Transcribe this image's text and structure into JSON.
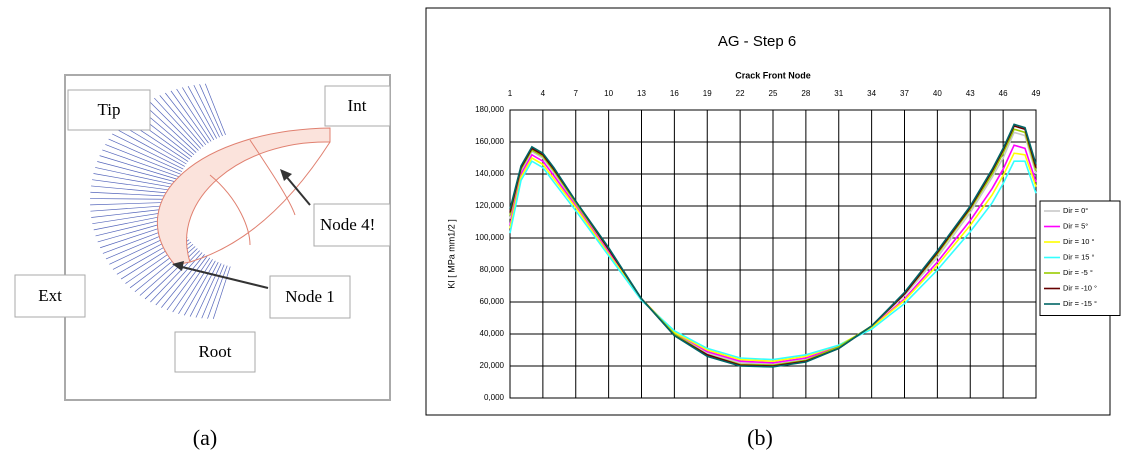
{
  "panel_a": {
    "labels": [
      "Tip",
      "Int",
      "Node 4!",
      "Ext",
      "Node 1",
      "Root"
    ],
    "caption": "(a)"
  },
  "panel_b": {
    "caption": "(b)"
  },
  "chart_data": {
    "type": "line",
    "title": "AG - Step 6",
    "x_label": "Crack Front Node",
    "y_label": "KI [ MPa mm1/2 ]",
    "x": [
      1,
      2,
      3,
      4,
      5,
      7,
      10,
      13,
      16,
      19,
      22,
      25,
      28,
      31,
      34,
      37,
      40,
      43,
      45,
      46,
      47,
      48,
      49
    ],
    "xlim": [
      1,
      49
    ],
    "xticks": [
      1,
      4,
      7,
      10,
      13,
      16,
      19,
      22,
      25,
      28,
      31,
      34,
      37,
      40,
      43,
      46,
      49
    ],
    "ylim": [
      0,
      180000
    ],
    "yticks": [
      {
        "value": 0,
        "label": "0,000"
      },
      {
        "value": 20000,
        "label": "20,000"
      },
      {
        "value": 40000,
        "label": "40,000"
      },
      {
        "value": 60000,
        "label": "60,000"
      },
      {
        "value": 80000,
        "label": "80,000"
      },
      {
        "value": 100000,
        "label": "100,000"
      },
      {
        "value": 120000,
        "label": "120,000"
      },
      {
        "value": 140000,
        "label": "140,000"
      },
      {
        "value": 160000,
        "label": "160,000"
      },
      {
        "value": 180000,
        "label": "180,000"
      }
    ],
    "grid": true,
    "legend": "right",
    "series": [
      {
        "name": "Dir = 0°",
        "color": "#c8c8c8",
        "values": [
          112000,
          142000,
          154000,
          150000,
          141000,
          121000,
          92000,
          62000,
          40000,
          28000,
          22000,
          21000,
          24000,
          32000,
          45000,
          64000,
          88000,
          116000,
          138000,
          150000,
          166000,
          164000,
          140000
        ]
      },
      {
        "name": "Dir = 5°",
        "color": "#ff00ff",
        "values": [
          108000,
          140000,
          152000,
          148000,
          139000,
          120000,
          91000,
          62000,
          41000,
          29000,
          23000,
          22000,
          25000,
          32000,
          44000,
          62000,
          85000,
          111000,
          131000,
          143000,
          158000,
          156000,
          135000
        ]
      },
      {
        "name": "Dir = 10 °",
        "color": "#ffff00",
        "values": [
          106000,
          138000,
          150000,
          146000,
          137000,
          119000,
          90000,
          62000,
          41000,
          30000,
          24000,
          23000,
          26000,
          33000,
          44000,
          61000,
          83000,
          108000,
          127000,
          139000,
          153000,
          152000,
          132000
        ]
      },
      {
        "name": "Dir = 15 °",
        "color": "#33ffff",
        "values": [
          103000,
          136000,
          148000,
          144000,
          135000,
          117000,
          89000,
          61000,
          42000,
          31000,
          25000,
          24000,
          27000,
          33000,
          43000,
          59000,
          80000,
          104000,
          122000,
          134000,
          148000,
          148000,
          128000
        ]
      },
      {
        "name": "Dir = -5 °",
        "color": "#99cc00",
        "values": [
          114000,
          143000,
          155000,
          151000,
          142000,
          122000,
          93000,
          62000,
          40000,
          27000,
          21000,
          20500,
          23500,
          32000,
          45000,
          65000,
          90000,
          118000,
          140000,
          153000,
          168000,
          166000,
          142000
        ]
      },
      {
        "name": "Dir = -10 °",
        "color": "#660000",
        "values": [
          116000,
          144000,
          156000,
          152000,
          143000,
          123000,
          93000,
          62000,
          39000,
          27000,
          20500,
          20000,
          23000,
          31000,
          45000,
          65000,
          91000,
          119000,
          142000,
          155000,
          170000,
          168000,
          144000
        ]
      },
      {
        "name": "Dir = -15 °",
        "color": "#006666",
        "values": [
          118000,
          145000,
          157000,
          153000,
          144000,
          123000,
          94000,
          62000,
          39000,
          26000,
          20000,
          19500,
          22500,
          31000,
          45000,
          66000,
          92000,
          120000,
          143000,
          156000,
          171000,
          169000,
          146000
        ]
      }
    ]
  }
}
